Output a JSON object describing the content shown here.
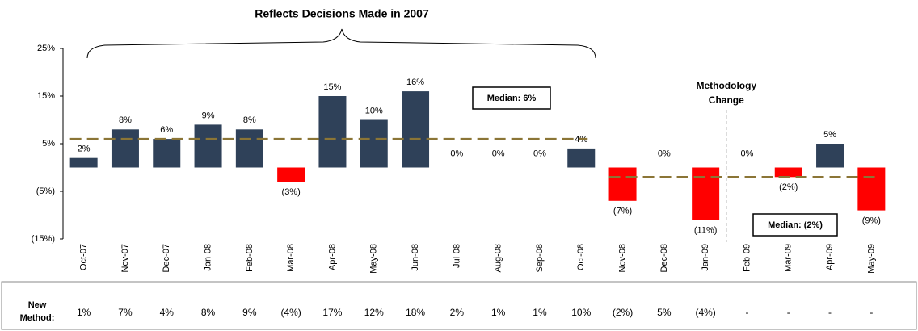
{
  "chart_data": {
    "type": "bar",
    "annotation": "Reflects Decisions Made in 2007",
    "categories": [
      "Oct-07",
      "Nov-07",
      "Dec-07",
      "Jan-08",
      "Feb-08",
      "Mar-08",
      "Apr-08",
      "May-08",
      "Jun-08",
      "Jul-08",
      "Aug-08",
      "Sep-08",
      "Oct-08",
      "Nov-08",
      "Dec-08",
      "Jan-09",
      "Feb-09",
      "Mar-09",
      "Apr-09",
      "May-09"
    ],
    "values": [
      2,
      8,
      6,
      9,
      8,
      -3,
      15,
      10,
      16,
      0,
      0,
      0,
      4,
      -7,
      0,
      -11,
      0,
      -2,
      5,
      -9
    ],
    "value_labels": [
      "2%",
      "8%",
      "6%",
      "9%",
      "8%",
      "(3%)",
      "15%",
      "10%",
      "16%",
      "0%",
      "0%",
      "0%",
      "4%",
      "(7%)",
      "0%",
      "(11%)",
      "0%",
      "(2%)",
      "5%",
      "(9%)"
    ],
    "positive_color": "#2f4159",
    "negative_color": "#ff0000",
    "ylim": [
      -15,
      25
    ],
    "yticks": [
      {
        "value": 25,
        "label": "25%"
      },
      {
        "value": 15,
        "label": "15%"
      },
      {
        "value": 5,
        "label": "5%"
      },
      {
        "value": -5,
        "label": "(5%)"
      },
      {
        "value": -15,
        "label": "(15%)"
      }
    ],
    "medians": [
      {
        "value": 6,
        "label": "Median: 6%"
      },
      {
        "value": -2,
        "label": "Median: (2%)"
      }
    ],
    "median_color": "#8b7536",
    "methodology_change": [
      "Methodology",
      "Change"
    ],
    "new_method": {
      "label": [
        "New",
        "Method:"
      ],
      "values": [
        "1%",
        "7%",
        "4%",
        "8%",
        "9%",
        "(4%)",
        "17%",
        "12%",
        "18%",
        "2%",
        "1%",
        "1%",
        "10%",
        "(2%)",
        "5%",
        "(4%)",
        "-",
        "-",
        "-",
        "-"
      ]
    }
  }
}
